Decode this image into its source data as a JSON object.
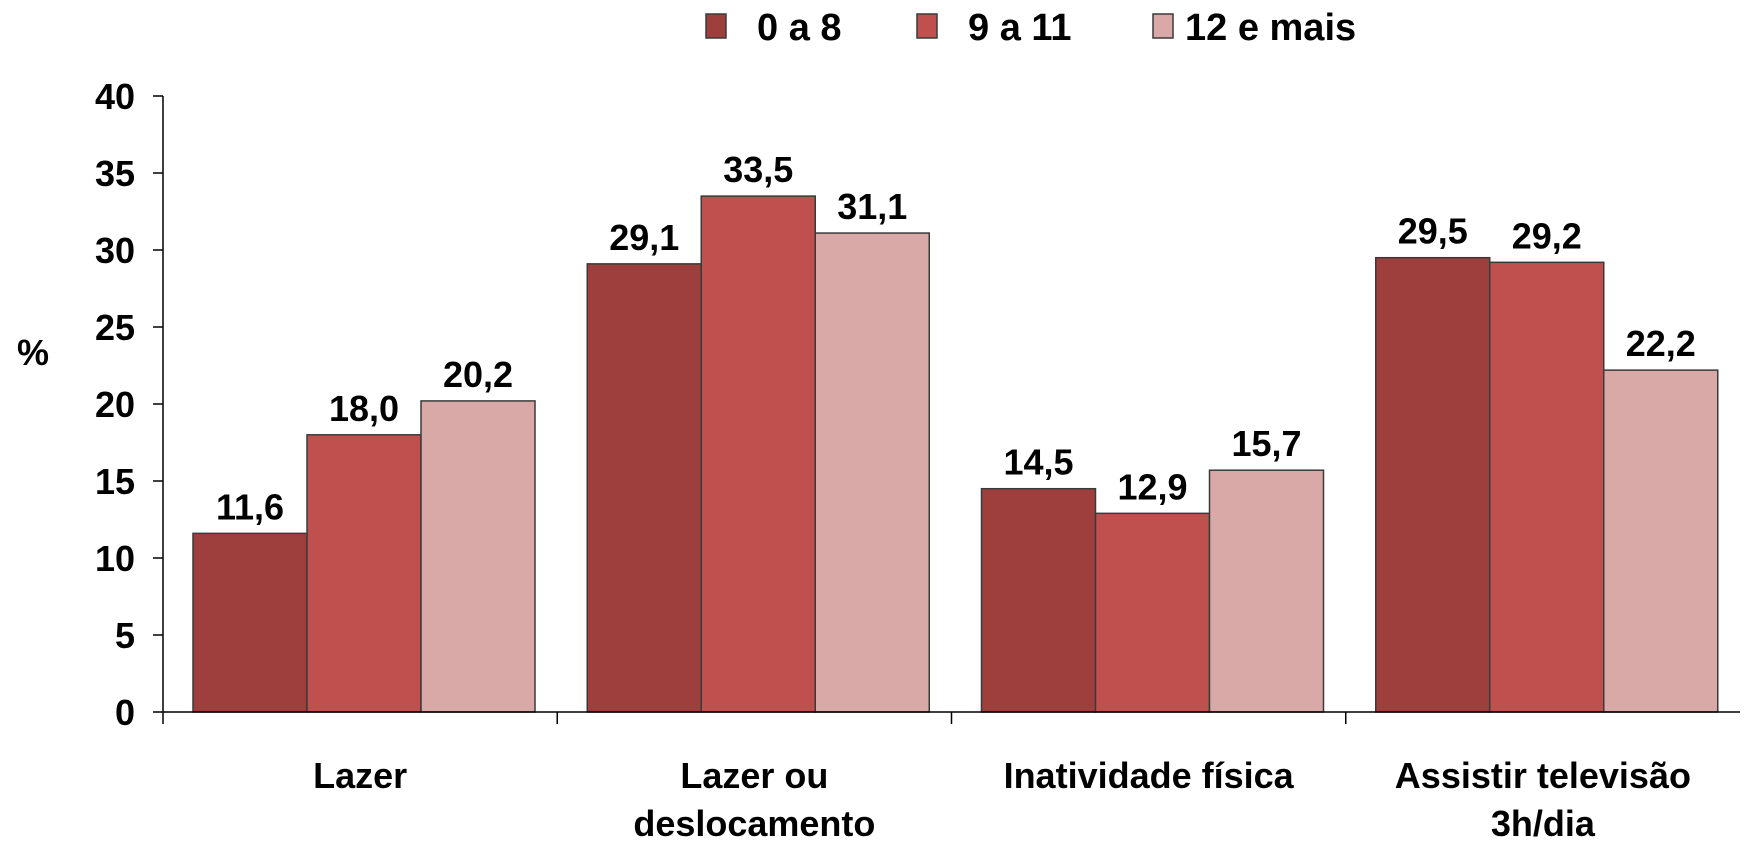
{
  "chart_data": {
    "type": "bar",
    "title": "",
    "xlabel": "",
    "ylabel": "%",
    "ylim": [
      0,
      40
    ],
    "yticks": [
      0,
      5,
      10,
      15,
      20,
      25,
      30,
      35,
      40
    ],
    "grid": false,
    "legend_position": "top-center",
    "categories": [
      [
        "Lazer"
      ],
      [
        "Lazer ou",
        "deslocamento"
      ],
      [
        "Inatividade física"
      ],
      [
        "Assistir televisão",
        "3h/dia"
      ]
    ],
    "series": [
      {
        "name": "0 a 8",
        "color": "#9E3F3E",
        "values": [
          11.6,
          29.1,
          14.5,
          29.5
        ],
        "labels": [
          "11,6",
          "29,1",
          "14,5",
          "29,5"
        ]
      },
      {
        "name": "9 a 11",
        "color": "#C0504E",
        "values": [
          18.0,
          33.5,
          12.9,
          29.2
        ],
        "labels": [
          "18,0",
          "33,5",
          "12,9",
          "29,2"
        ]
      },
      {
        "name": "12 e mais",
        "color": "#D9A9A8",
        "values": [
          20.2,
          31.1,
          15.7,
          22.2
        ],
        "labels": [
          "20,2",
          "31,1",
          "15,7",
          "22,2"
        ]
      }
    ]
  }
}
